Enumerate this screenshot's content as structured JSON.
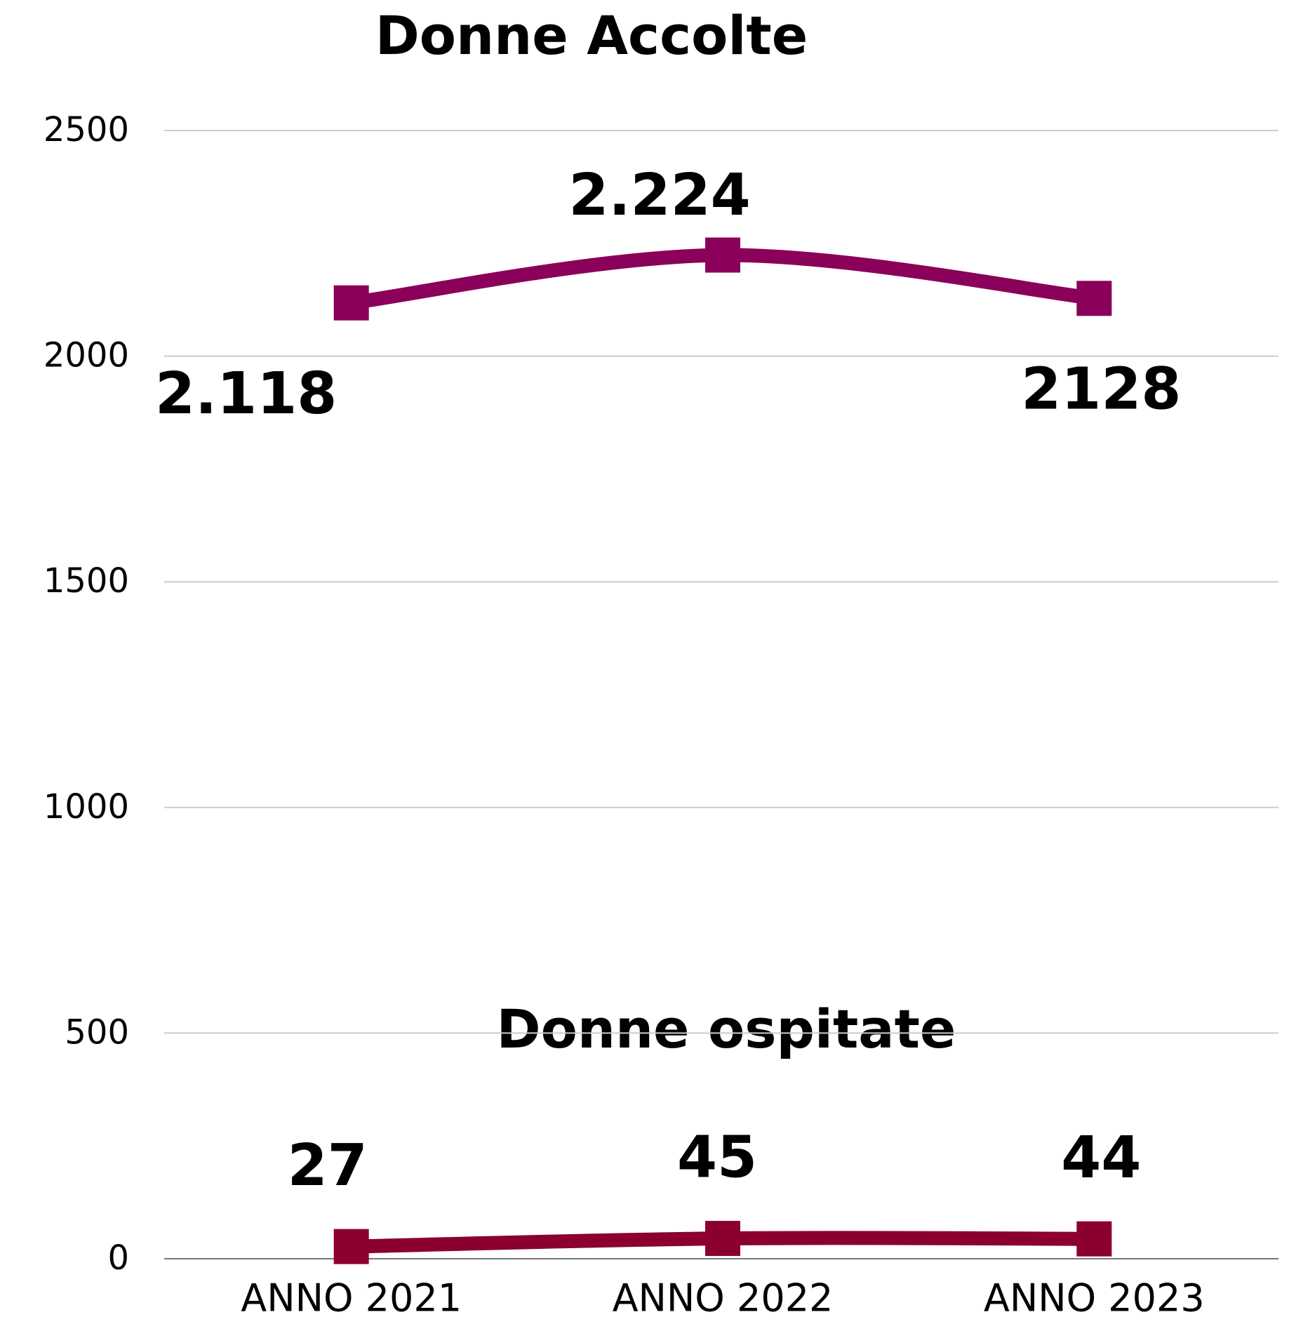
{
  "chart_data": {
    "type": "line",
    "categories": [
      "ANNO 2021",
      "ANNO 2022",
      "ANNO 2023"
    ],
    "series": [
      {
        "name": "Donne Accolte",
        "color": "#8b005a",
        "values": [
          2118,
          2224,
          2128
        ],
        "value_labels": [
          "2.118",
          "2.224",
          "2128"
        ]
      },
      {
        "name": "Donne ospitate",
        "color": "#8b0030",
        "values": [
          27,
          45,
          44
        ]
      }
    ],
    "ylim": [
      0,
      2500
    ],
    "yticks": [
      0,
      500,
      1000,
      1500,
      2000,
      2500
    ],
    "grid": true
  }
}
